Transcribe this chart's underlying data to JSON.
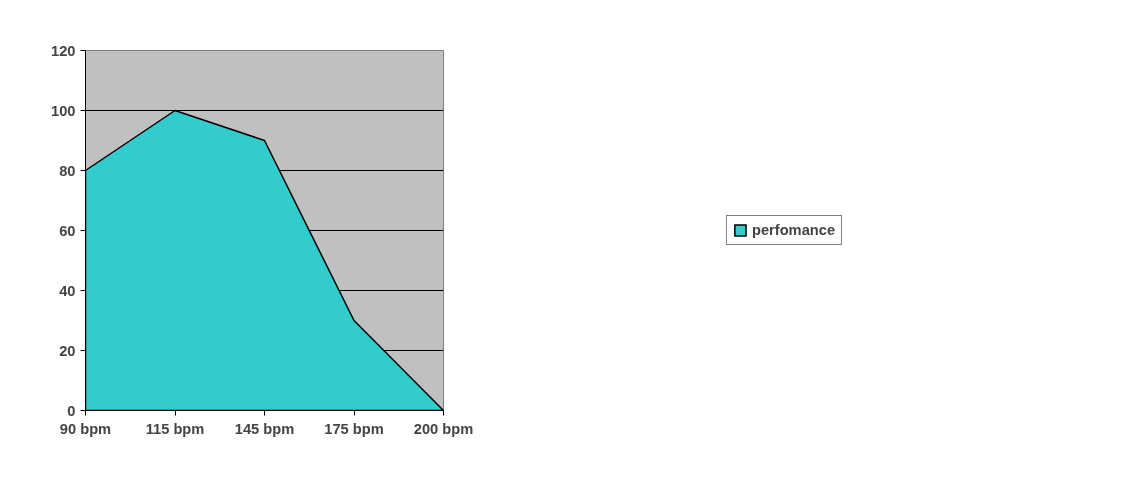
{
  "chart_data": {
    "type": "area",
    "categories": [
      "90 bpm",
      "115 bpm",
      "145 bpm",
      "175 bpm",
      "200 bpm"
    ],
    "series": [
      {
        "name": "perfomance",
        "color": "#33cccc",
        "values": [
          80,
          100,
          90,
          30,
          0
        ]
      }
    ],
    "ylim": [
      0,
      120
    ],
    "yticks": [
      0,
      20,
      40,
      60,
      80,
      100,
      120
    ],
    "grid": "y",
    "legend": "right"
  }
}
